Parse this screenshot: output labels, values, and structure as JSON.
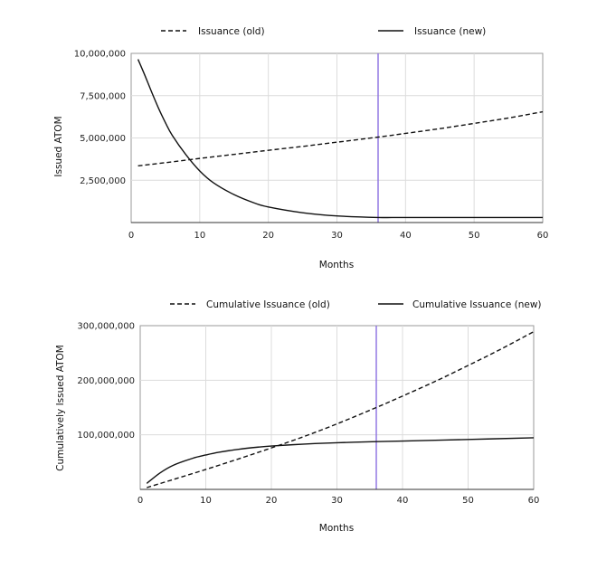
{
  "chart_data": [
    {
      "type": "line",
      "xlabel": "Months",
      "ylabel": "Issued ATOM",
      "xlim": [
        0,
        60
      ],
      "ylim": [
        0,
        10000000
      ],
      "x_ticks": [
        0,
        10,
        20,
        30,
        40,
        50,
        60
      ],
      "x_tick_labels": [
        "0",
        "10",
        "20",
        "30",
        "40",
        "50",
        "60"
      ],
      "y_ticks": [
        2500000,
        5000000,
        7500000,
        10000000
      ],
      "y_tick_labels": [
        "2,500,000",
        "5,000,000",
        "7,500,000",
        "10,000,000"
      ],
      "grid": true,
      "legend_position": "top",
      "vline_x": 36,
      "vline_color": "#8a6ee0",
      "series": [
        {
          "name": "Issuance (old)",
          "style": "dashed",
          "x": [
            1,
            5,
            10,
            15,
            20,
            25,
            30,
            36,
            40,
            45,
            50,
            55,
            60
          ],
          "values": [
            3350000,
            3540000,
            3790000,
            4030000,
            4270000,
            4500000,
            4750000,
            5050000,
            5270000,
            5550000,
            5860000,
            6180000,
            6550000
          ]
        },
        {
          "name": "Issuance (new)",
          "style": "solid",
          "x": [
            1,
            2,
            3,
            4,
            5,
            6,
            8,
            10,
            12,
            15,
            18,
            20,
            25,
            30,
            36,
            40,
            50,
            60
          ],
          "values": [
            9650000,
            8700000,
            7700000,
            6750000,
            5900000,
            5150000,
            4000000,
            3050000,
            2350000,
            1650000,
            1150000,
            920000,
            580000,
            390000,
            300000,
            300000,
            300000,
            300000
          ]
        }
      ]
    },
    {
      "type": "line",
      "xlabel": "Months",
      "ylabel": "Cumulatively Issued ATOM",
      "xlim": [
        0,
        60
      ],
      "ylim": [
        0,
        300000000
      ],
      "x_ticks": [
        0,
        10,
        20,
        30,
        40,
        50,
        60
      ],
      "x_tick_labels": [
        "0",
        "10",
        "20",
        "30",
        "40",
        "50",
        "60"
      ],
      "y_ticks": [
        100000000,
        200000000,
        300000000
      ],
      "y_tick_labels": [
        "100,000,000",
        "200,000,000",
        "300,000,000"
      ],
      "grid": true,
      "legend_position": "top",
      "vline_x": 36,
      "vline_color": "#8a6ee0",
      "series": [
        {
          "name": "Cumulative Issuance (old)",
          "style": "dashed",
          "x": [
            1,
            5,
            10,
            15,
            20,
            25,
            30,
            36,
            40,
            45,
            50,
            55,
            60
          ],
          "values": [
            3300000,
            18000000,
            36500000,
            55900000,
            76000000,
            97000000,
            120000000,
            150000000,
            171000000,
            198000000,
            227000000,
            257000000,
            289000000
          ]
        },
        {
          "name": "Cumulative Issuance (new)",
          "style": "solid",
          "x": [
            1,
            3,
            5,
            8,
            10,
            12,
            15,
            18,
            20,
            25,
            30,
            36,
            40,
            50,
            60
          ],
          "values": [
            11000000,
            30000000,
            44000000,
            57000000,
            63000000,
            68000000,
            73500000,
            77500000,
            79500000,
            83000000,
            85500000,
            87500000,
            88500000,
            91500000,
            94500000
          ]
        }
      ]
    }
  ]
}
